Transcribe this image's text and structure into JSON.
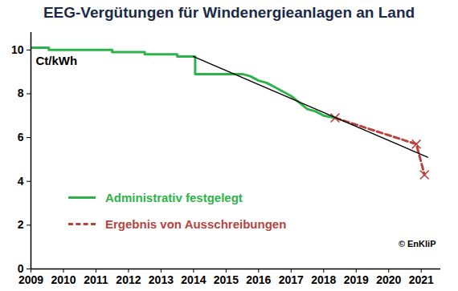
{
  "chart_data": {
    "type": "line",
    "title": "EEG-Vergütungen für Windenergieanlagen an Land",
    "ylabel": "Ct/kWh",
    "xlim": [
      2009,
      2021.6
    ],
    "ylim": [
      0,
      10.8
    ],
    "xticks": [
      2009,
      2010,
      2011,
      2012,
      2013,
      2014,
      2015,
      2016,
      2017,
      2018,
      2019,
      2020,
      2021
    ],
    "yticks": [
      0,
      2,
      4,
      6,
      8,
      10
    ],
    "grid": false,
    "legend": "lower left",
    "annotations": [
      "© EnKliP"
    ],
    "series": [
      {
        "name": "Administrativ festgelegt",
        "color": "#2db34a",
        "line_style": "solid",
        "x": [
          2009,
          2009.55,
          2009.55,
          2011.5,
          2011.5,
          2012.5,
          2012.5,
          2013.5,
          2013.5,
          2014.05,
          2014.05,
          2015.5,
          2015.75,
          2016,
          2016.25,
          2016.5,
          2016.75,
          2017,
          2017.25,
          2017.5,
          2017.75,
          2018,
          2018.35
        ],
        "values": [
          10.1,
          10.1,
          10.0,
          10.0,
          9.9,
          9.9,
          9.8,
          9.8,
          9.7,
          9.7,
          8.9,
          8.9,
          8.8,
          8.6,
          8.5,
          8.3,
          8.1,
          7.9,
          7.6,
          7.3,
          7.2,
          7.0,
          6.9
        ]
      },
      {
        "name": "Ergebnis von Ausschreibungen",
        "color": "#b8433d",
        "line_style": "dashed",
        "marker": "times",
        "x": [
          2018.35,
          2020.85,
          2021.1
        ],
        "values": [
          6.9,
          5.7,
          4.3
        ]
      },
      {
        "color": "#000000",
        "line_style": "solid",
        "x": [
          2014.0,
          2021.2
        ],
        "values": [
          9.7,
          5.1
        ]
      }
    ]
  }
}
